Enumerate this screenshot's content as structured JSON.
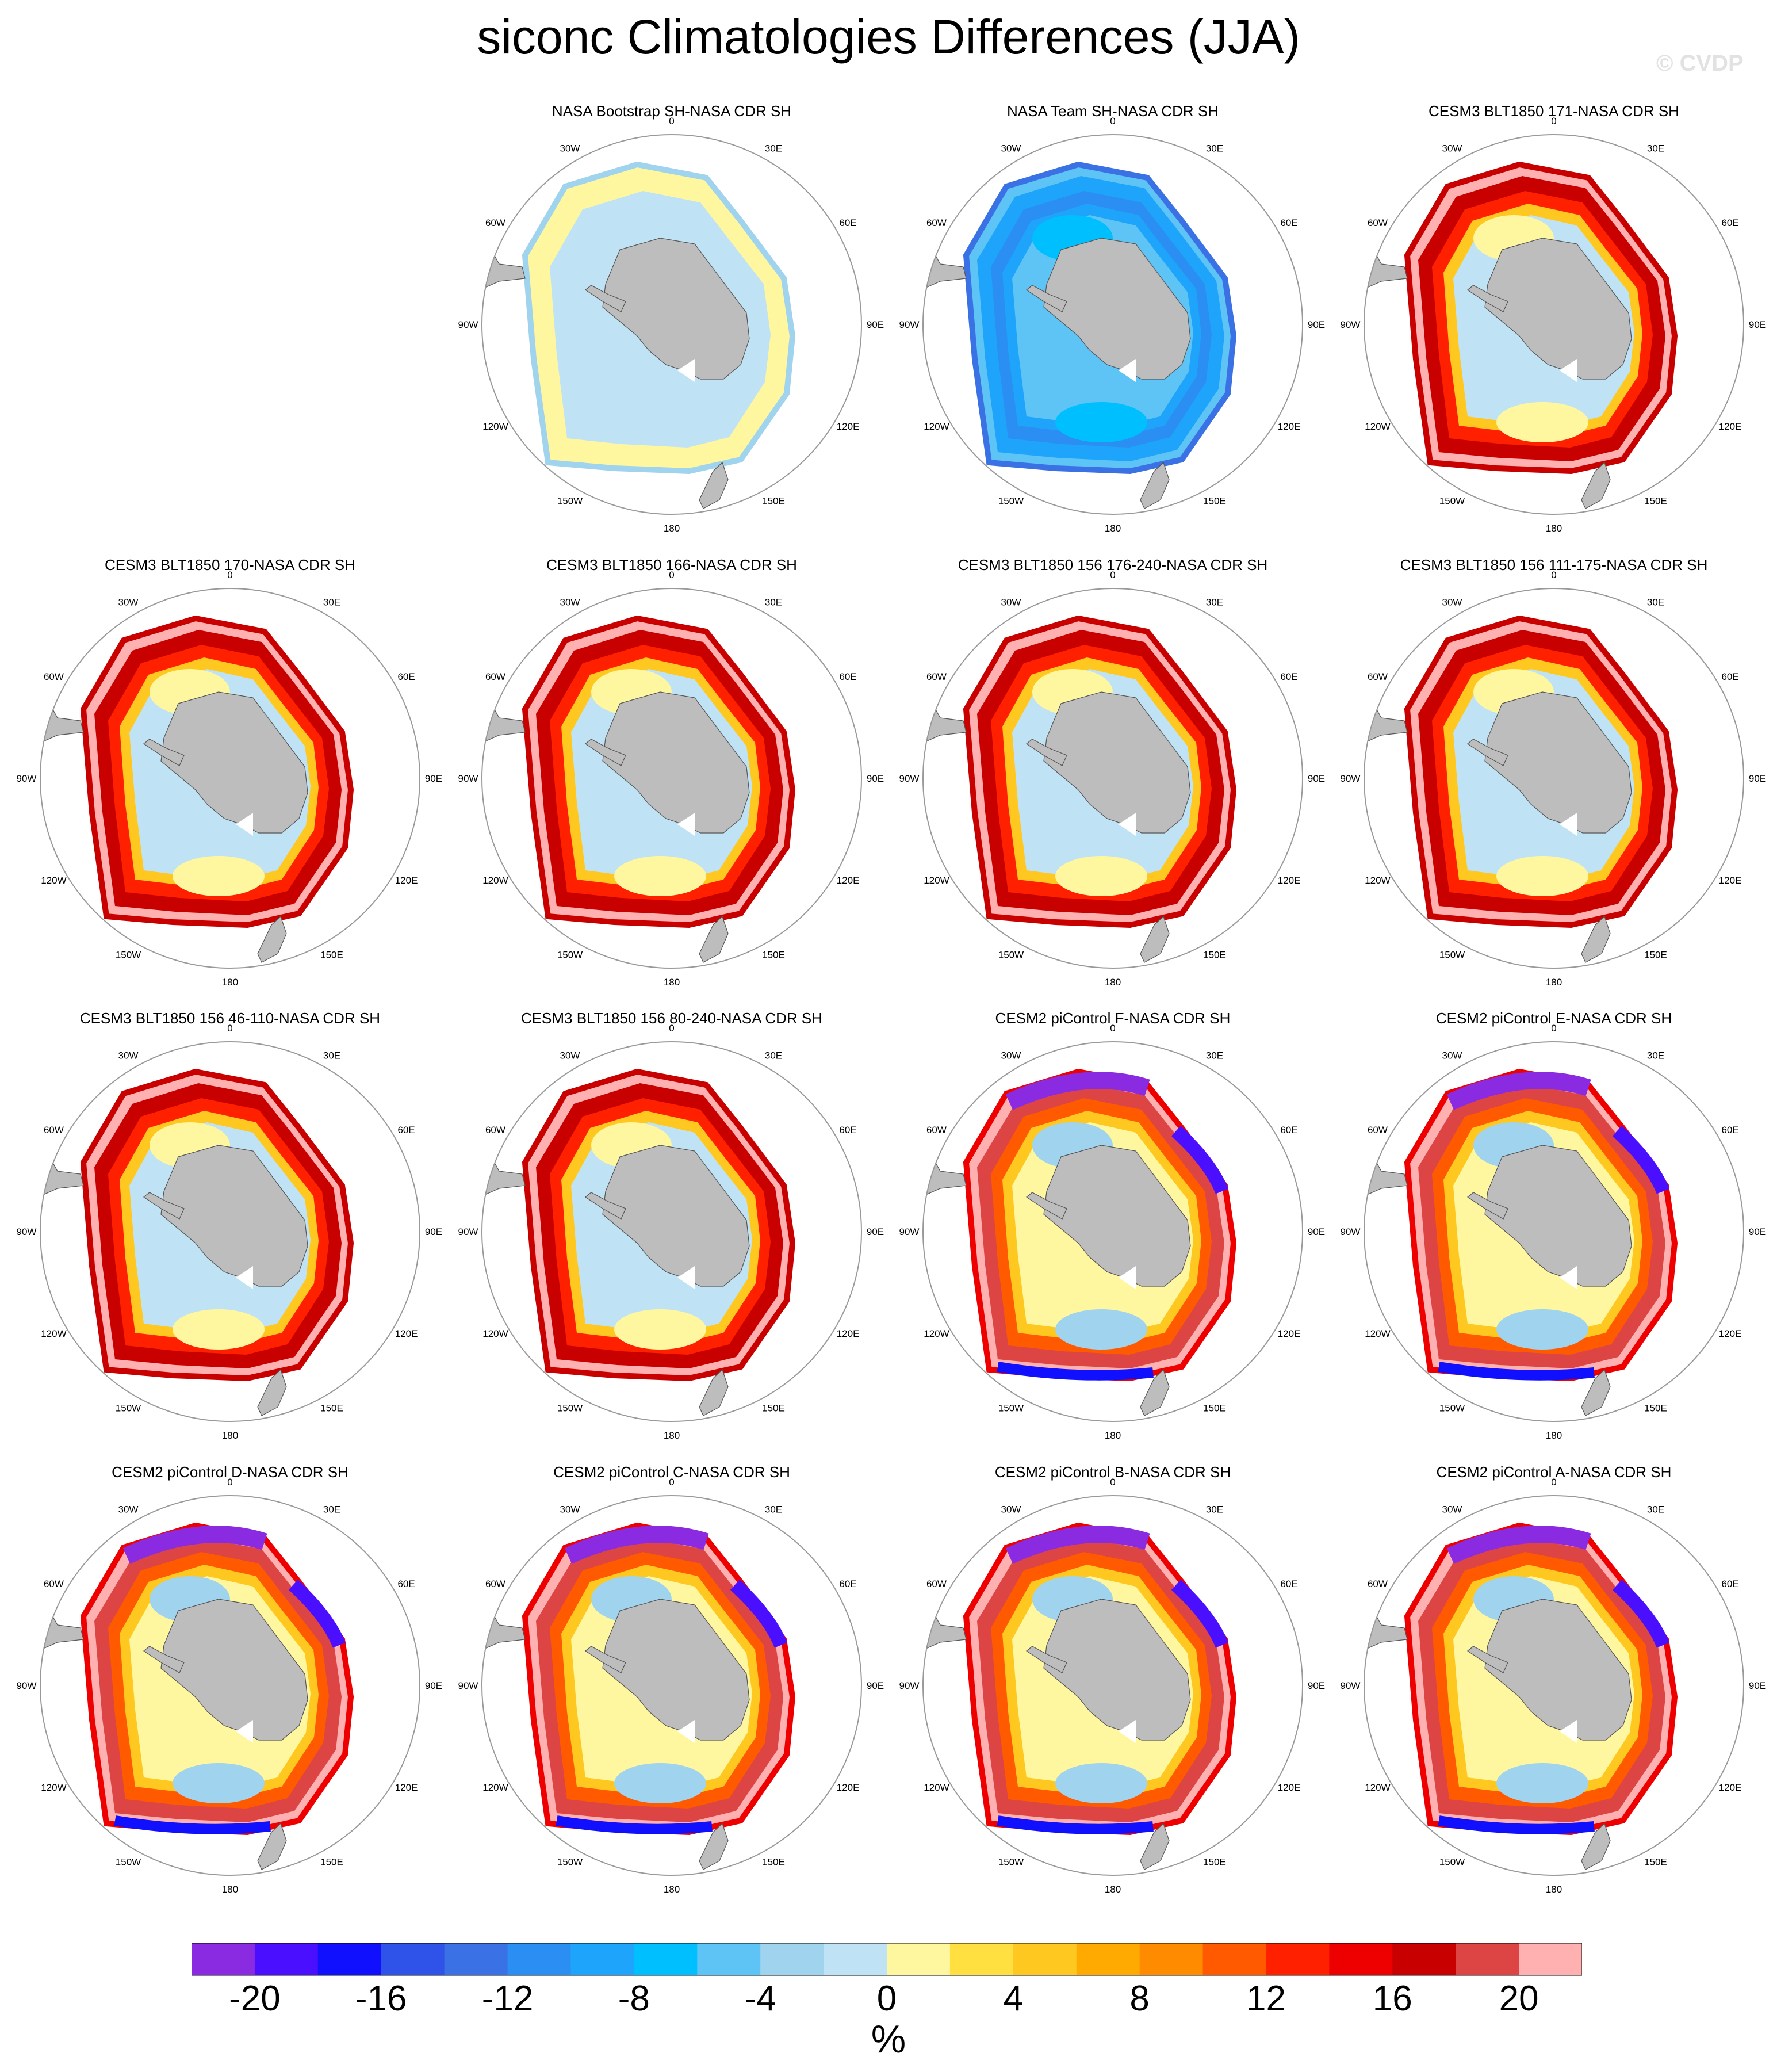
{
  "figure": {
    "title": "siconc Climatologies Differences (JJA)",
    "watermark": "© CVDP",
    "units": "%"
  },
  "map_labels": [
    "0",
    "30E",
    "60E",
    "90E",
    "120E",
    "150E",
    "180",
    "150W",
    "120W",
    "90W",
    "60W",
    "30W"
  ],
  "panels": [
    {
      "title": "NASA Bootstrap SH-NASA CDR SH",
      "pattern": "bootstrap"
    },
    {
      "title": "NASA Team SH-NASA CDR SH",
      "pattern": "team"
    },
    {
      "title": "CESM3 BLT1850 171-NASA CDR SH",
      "pattern": "cesm3"
    },
    {
      "title": "CESM3 BLT1850 170-NASA CDR SH",
      "pattern": "cesm3"
    },
    {
      "title": "CESM3 BLT1850 166-NASA CDR SH",
      "pattern": "cesm3"
    },
    {
      "title": "CESM3 BLT1850 156 176-240-NASA CDR SH",
      "pattern": "cesm3"
    },
    {
      "title": "CESM3 BLT1850 156 111-175-NASA CDR SH",
      "pattern": "cesm3"
    },
    {
      "title": "CESM3 BLT1850 156 46-110-NASA CDR SH",
      "pattern": "cesm3"
    },
    {
      "title": "CESM3 BLT1850 156 80-240-NASA CDR SH",
      "pattern": "cesm3"
    },
    {
      "title": "CESM2 piControl F-NASA CDR SH",
      "pattern": "cesm2"
    },
    {
      "title": "CESM2 piControl E-NASA CDR SH",
      "pattern": "cesm2"
    },
    {
      "title": "CESM2 piControl D-NASA CDR SH",
      "pattern": "cesm2"
    },
    {
      "title": "CESM2 piControl C-NASA CDR SH",
      "pattern": "cesm2"
    },
    {
      "title": "CESM2 piControl B-NASA CDR SH",
      "pattern": "cesm2"
    },
    {
      "title": "CESM2 piControl A-NASA CDR SH",
      "pattern": "cesm2"
    }
  ],
  "colorbar": {
    "colors": [
      "#8a2be2",
      "#4b0fff",
      "#1010ff",
      "#2f52e8",
      "#3a72e6",
      "#2a8ef2",
      "#1ea4fa",
      "#00bfff",
      "#5ec4f5",
      "#9fd3ee",
      "#bfe3f5",
      "#fff7a0",
      "#ffe040",
      "#ffc820",
      "#ffaa00",
      "#ff8c00",
      "#ff5a00",
      "#ff2000",
      "#ee0000",
      "#c80000",
      "#dd4444",
      "#ffb0b0"
    ],
    "tick_labels": [
      "-20",
      "-16",
      "-12",
      "-8",
      "-4",
      "0",
      "4",
      "8",
      "12",
      "16",
      "20"
    ]
  },
  "map_style": {
    "land_color": "#bdbdbd",
    "circle_color": "#999999"
  }
}
